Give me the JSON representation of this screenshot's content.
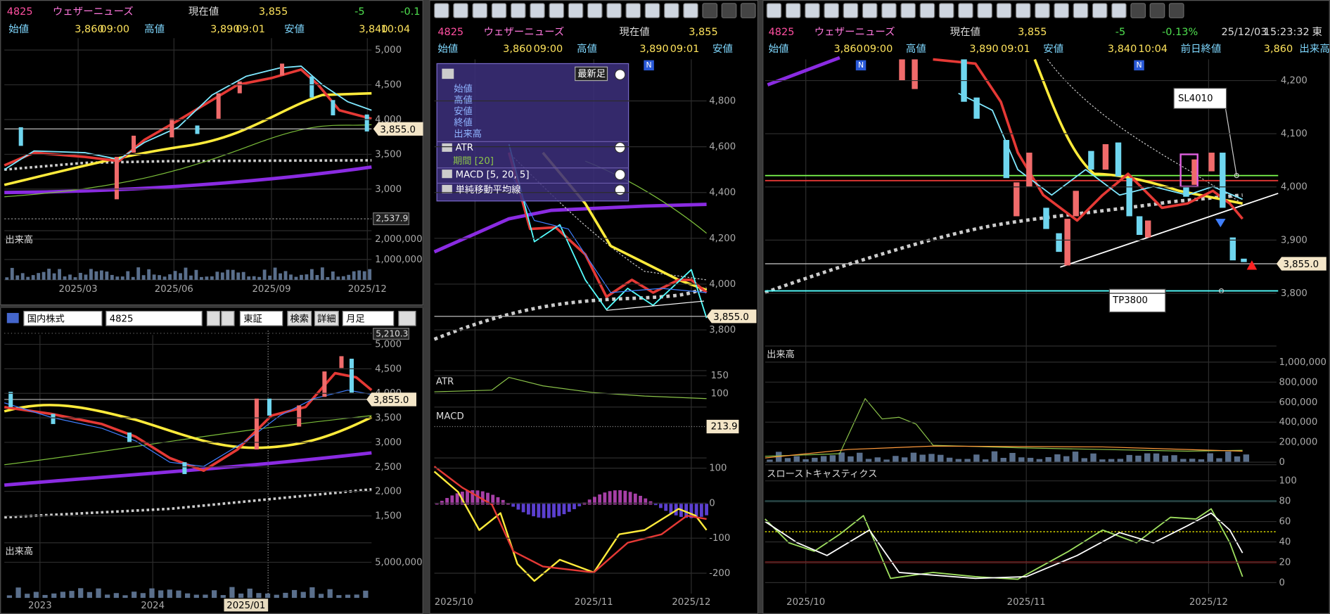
{
  "left_top": {
    "header": {
      "code": "4825",
      "name": "ウェザーニューズ",
      "current_label": "現在値",
      "current": "3,855",
      "change": "-5",
      "change_pct": "-0.1"
    },
    "ohlc": {
      "open_label": "始値",
      "open": "3,860",
      "open_time": "09:00",
      "high_label": "高値",
      "high": "3,890",
      "high_time": "09:01",
      "low_label": "安値",
      "low": "3,840",
      "low_time": "10:04"
    },
    "price_ticks": [
      "5,000",
      "4,500",
      "4,000",
      "3,500",
      "3,000"
    ],
    "current_tag": "3,855.0",
    "low_tag": "2,537.9",
    "volume_label": "出来高",
    "volume_ticks": [
      "2,000,000",
      "1,000,000"
    ],
    "x_labels": [
      "2025/03",
      "2025/06",
      "2025/09",
      "2025/12"
    ]
  },
  "left_bottom": {
    "toolbar": {
      "market": "国内株式",
      "code": "4825",
      "exchange": "東証",
      "search": "検索",
      "detail": "詳細",
      "period": "月足"
    },
    "price_ticks": [
      "5,000",
      "4,500",
      "4,000",
      "3,500",
      "3,000",
      "2,500",
      "2,000",
      "1,500"
    ],
    "high_tag": "5,210.3",
    "current_tag": "3,855.0",
    "volume_label": "出来高",
    "volume_ticks": [
      "5,000,000"
    ],
    "x_labels": [
      "2023",
      "2024",
      "2025/01"
    ]
  },
  "middle": {
    "header": {
      "code": "4825",
      "name": "ウェザーニューズ",
      "current_label": "現在値",
      "current": "3,855"
    },
    "ohlc": {
      "open_label": "始値",
      "open": "3,860",
      "open_time": "09:00",
      "high_label": "高値",
      "high": "3,890",
      "high_time": "09:01",
      "low_label": "安値"
    },
    "news": "N",
    "popup": {
      "button": "最新足",
      "items": [
        "始値",
        "高値",
        "安値",
        "終値",
        "出来高"
      ],
      "indicators": [
        "ATR",
        "期間 [20]",
        "MACD [5, 20, 5]",
        "単純移動平均線"
      ]
    },
    "price_ticks": [
      "4,800",
      "4,600",
      "4,400",
      "4,200",
      "4,000",
      "3,800"
    ],
    "current_tag": "3,855.0",
    "atr_label": "ATR",
    "atr_ticks": [
      "150",
      "100"
    ],
    "macd_label": "MACD",
    "macd_tag": "213.9",
    "macd_ticks": [
      "100",
      "0",
      "-100",
      "-200"
    ],
    "x_labels": [
      "2025/10",
      "2025/11",
      "2025/12"
    ]
  },
  "right": {
    "header": {
      "code": "4825",
      "name": "ウェザーニューズ",
      "current_label": "現在値",
      "current": "3,855",
      "change": "-5",
      "change_pct": "-0.13%",
      "date": "25/12/03",
      "time": "15:23:32",
      "exchange": "東"
    },
    "ohlc": {
      "open_label": "始値",
      "open": "3,860",
      "open_time": "09:00",
      "high_label": "高値",
      "high": "3,890",
      "high_time": "09:01",
      "low_label": "安値",
      "low": "3,840",
      "low_time": "10:04",
      "prev_close_label": "前日終値",
      "prev_close": "3,860",
      "volume_label": "出来高"
    },
    "news": "N",
    "price_ticks": [
      "4,200",
      "4,100",
      "4,000",
      "3,900",
      "3,800"
    ],
    "current_tag": "3,855.0",
    "annotations": {
      "sl": "SL4010",
      "tp": "TP3800"
    },
    "volume_label": "出来高",
    "volume_ticks": [
      "1,000,000",
      "800,000",
      "600,000",
      "400,000",
      "200,000",
      "0"
    ],
    "stoch_label": "スローストキャスティクス",
    "stoch_ticks": [
      "100",
      "80",
      "60",
      "40",
      "20",
      "0"
    ],
    "x_labels": [
      "2025/10",
      "2025/11",
      "2025/12"
    ]
  }
}
